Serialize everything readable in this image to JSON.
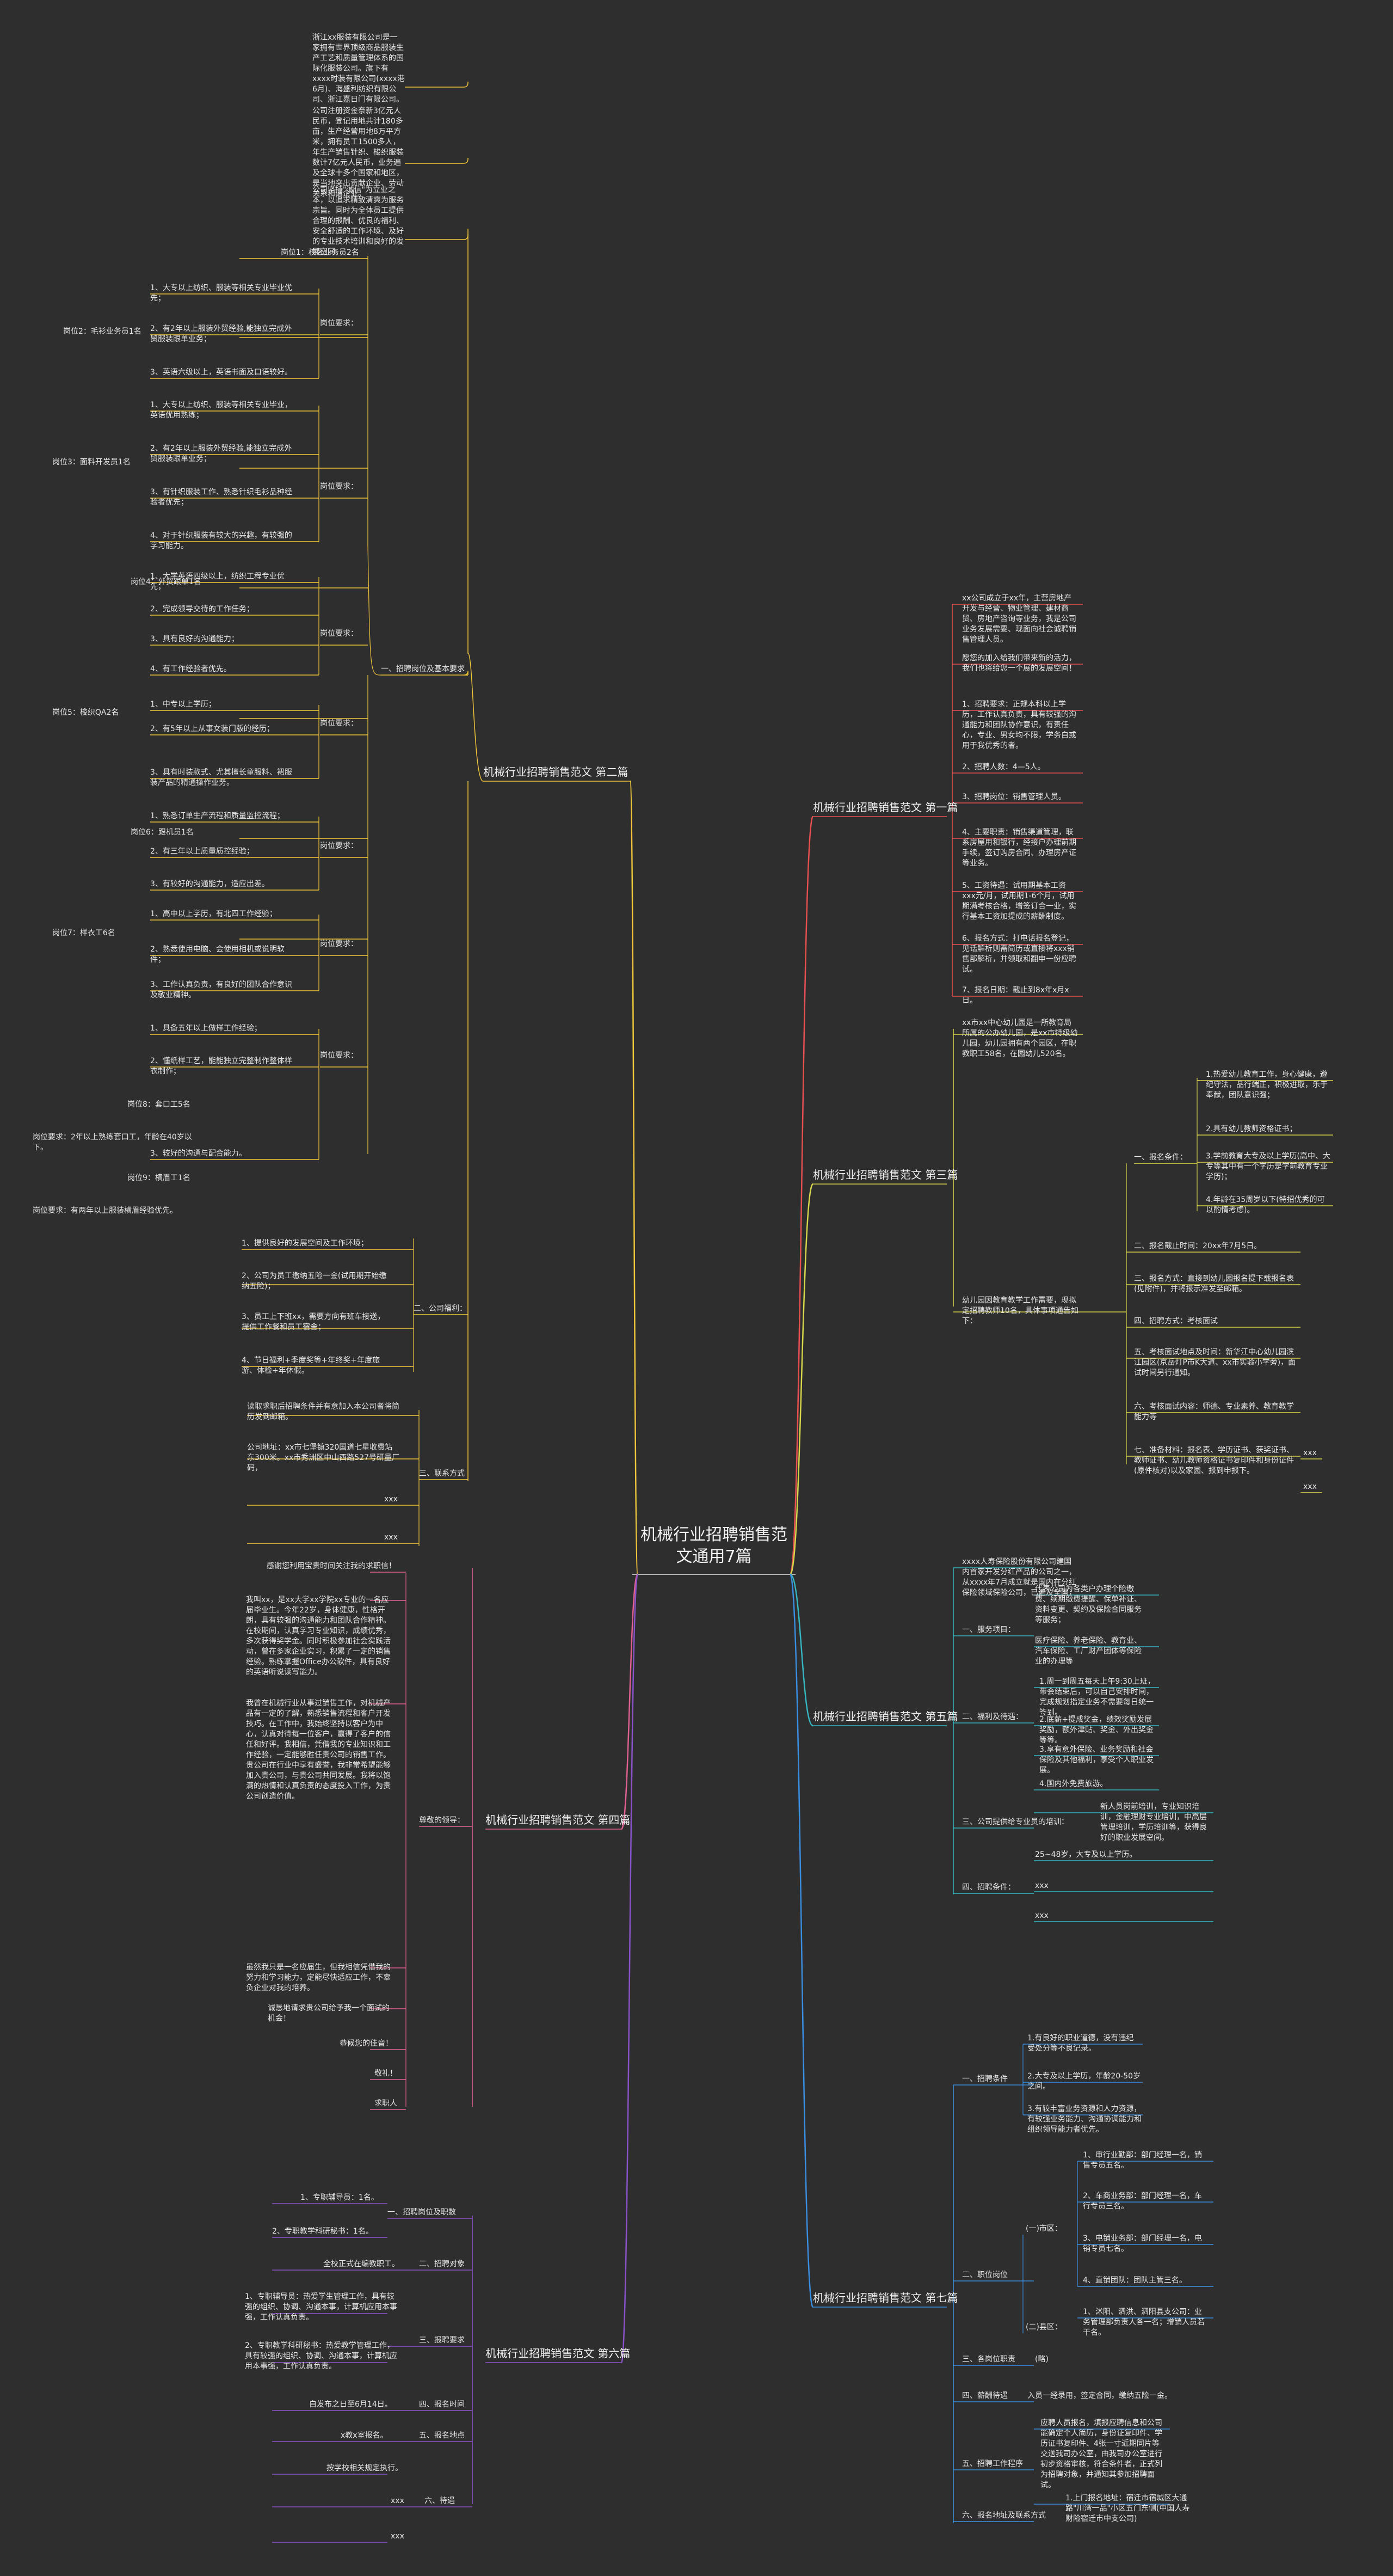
{
  "root": {
    "title": "机械行业招聘销售范文通用7篇"
  },
  "colors": {
    "b1": "#e85050",
    "b2": "#f0c63a",
    "b3": "#d8d64a",
    "b4": "#e06090",
    "b5": "#35b6c0",
    "b6": "#8a52c8",
    "b7": "#3a8ee0",
    "text": "#e6e6e6",
    "bg": "#2e2e2e"
  },
  "b2": {
    "title": "机械行业招聘销售范文 第二篇",
    "intro": [
      "浙江xx服装有限公司是一家拥有世界顶级商品服装生产工艺和质量管理体系的国际化服装公司。旗下有xxxx时装有限公司(xxxx港6月)、海盛利纺织有限公司、浙江嘉日门有限公司。",
      "公司注册资金奈新3亿元人民币，登记用地共计180多亩，生产经营用地8万平方米，拥有员工1500多人，年生产销售针织、梭织服装数计7亿元人民币，业务遍及全球十多个国家和地区，是当地突出贡献企业、劳动关系和谐企业。",
      "公司坚持\"诚信\"为立业之本，以追求精致清爽为服务宗旨。同时为全体员工提供合理的报酬、优良的福利、安全舒适的工作环境、及好的专业技术培训和良好的发展空间。"
    ],
    "section1": "一、招聘岗位及基本要求",
    "jobs": [
      {
        "title": "岗位1：校区业务员2名",
        "label": "岗位要求：",
        "items": [
          "1、大专以上纺织、服装等相关专业毕业优先；",
          "2、有2年以上服装外贸经验,能独立完成外贸服装跟单业务；",
          "3、英语六级以上，英语书面及口语较好。"
        ]
      },
      {
        "title": "岗位2：毛衫业务员1名",
        "label": "岗位要求：",
        "items": [
          "1、大专以上纺织、服装等相关专业毕业，英语优用熟练；",
          "2、有2年以上服装外贸经验,能独立完成外贸服装跟单业务；",
          "3、有针织服装工作、熟悉针织毛衫品种经验者优先；",
          "4、对于针织服装有较大的兴趣，有较强的学习能力。"
        ]
      },
      {
        "title": "岗位3：面料开发员1名",
        "label": "岗位要求：",
        "items": [
          "1、大学英语四级以上，纺织工程专业优先；",
          "2、完成领导交待的工作任务；",
          "3、具有良好的沟通能力；",
          "4、有工作经验者优先。"
        ]
      },
      {
        "title": "岗位4：外贸跟单1名",
        "label": "岗位要求：",
        "items": [
          "1、中专以上学历；",
          "2、有5年以上从事女装门版的经历；",
          "3、具有时装款式、尤其擅长童服料、裙服装产品的精通操作业务。"
        ]
      },
      {
        "title": "岗位5：梭织QA2名",
        "label": "岗位要求：",
        "items": [
          "1、熟悉订单生产流程和质量监控流程；",
          "2、有三年以上质量质控经验；",
          "3、有较好的沟通能力，适应出差。"
        ]
      },
      {
        "title": "岗位6：跟机员1名",
        "label": "岗位要求：",
        "items": [
          "1、高中以上学历，有北四工作经验；",
          "2、熟悉使用电脑、会使用相机或说明软件；",
          "3、工作认真负责，有良好的团队合作意识及敬业精神。"
        ]
      },
      {
        "title": "岗位7：样衣工6名",
        "label": "岗位要求：",
        "items": [
          "1、具备五年以上做样工作经验；",
          "2、懂纸样工艺，能能独立完整制作整体样衣制作；",
          "3、较好的沟通与配合能力。"
        ]
      }
    ],
    "extra": [
      "岗位8：套口工5名",
      "岗位要求：2年以上熟练套口工，年龄在40岁以下。",
      "岗位9：横眉工1名",
      "岗位要求：有两年以上服装横眉经验优先。"
    ],
    "section2": "二、公司福利：",
    "welfare": [
      "1、提供良好的发展空间及工作环境；",
      "2、公司为员工缴纳五险一金(试用期开始缴纳五险)；",
      "3、员工上下班xx，需要方向有班车接送，提供工作餐和员工宿舍；",
      "4、节日福利+季度奖等+年终奖+年度旅游、体检+年休假。"
    ],
    "section3": "三、联系方式",
    "contact": [
      "读取求职后招聘条件并有意加入本公司者将简历发到邮箱。",
      "公司地址：xx市七堡镇320国道七星收费站东300米。xx市秀洲区中山西路527号研量厂码，",
      "xxx",
      "xxx"
    ]
  },
  "b1": {
    "title": "机械行业招聘销售范文 第一篇",
    "items": [
      "xx公司成立于xx年，主营房地产开发与经营、物业管理、建材商贸、房地产咨询等业务，我是公司业务发展需要、现面向社会诚聘销售管理人员。",
      "愿您的加入给我们带来新的活力，我们也将给您一个展的发展空间！",
      "1、招聘要求：正规本科以上学历，工作认真负责，具有较强的沟通能力和团队协作意识，有责任心，专业、男女均不限，学务自或用于我优秀的者。",
      "2、招聘人数：4—5人。",
      "3、招聘岗位：销售管理人员。",
      "4、主要职责：销售渠道管理，联系房屋用和银行，经接户办理前期手续，签订购房合同、办理房产证等业务。",
      "5、工资待遇：试用期基本工资xxx元/月，试用期1-6个月，试用期满考核合格，增签订合一业，实行基本工资加提成的薪酬制度。",
      "6、报名方式：打电话报名登记，见话解析则需简历或直接将xxx销售部解析，并领取和翻申一份应聘试。",
      "7、报名日期：截止到8x年x月x日。"
    ]
  },
  "b3": {
    "title": "机械行业招聘销售范文 第三篇",
    "intro": [
      "xx市xx中心幼儿园是一所教育局所属的公办幼儿园，是xx市特级幼儿园，幼儿园拥有两个园区，在职教职工58名，在园幼儿520名。",
      "幼儿园因教育教学工作需要，现拟定招聘教师10名，具体事项通告如下："
    ],
    "s1": "一、报名条件：",
    "s1items": [
      "1.热爱幼儿教育工作，身心健康，遵纪守法，品行端正，积极进取，乐于奉献，团队意识强；",
      "2.具有幼儿教师资格证书；",
      "3.学前教育大专及以上学历(高中、大专等其中有一个学历是学前教育专业学历)；",
      "4.年龄在35周岁以下(特招优秀的可以酌情考虑)。"
    ],
    "rest": [
      "二、报名截止时间：20xx年7月5日。",
      "三、报名方式：直接到幼儿园报名提下载报名表(见附件)，并将报示准发至邮箱。",
      "四、招聘方式：考核面试",
      "五、考核面试地点及时间：新华江中心幼儿园滨江园区(京岳灯P市K大道、xx市实验小学旁)，面试时间另行通知。",
      "六、考核面试内容：师德、专业素养、教育教学能力等",
      "七、准备材料：报名表、学历证书、获奖证书、教师证书、幼儿教师资格证书复印件和身份证件(原件核对)以及家园、报到申报下。"
    ],
    "xxx": [
      "xxx",
      "xxx"
    ]
  },
  "b5": {
    "title": "机械行业招聘销售范文 第五篇",
    "intro": "xxxx人寿保险股份有限公司建国内首家开发分红产品的公司之一，从xxxx年7月成立就是国内在分红保险领域保险公司，已遍及全国，为中国西部地区提供优质保险服务。全公司之秀，我已建立的相关业务客户服务中心，竭诚为广大客户提供优质服务。我公司以人为本，坚持以人为本，对人才的重视和培养。",
    "s1": "一、服务项目：",
    "s1items": [
      "代表公司为各类户办理个险缴费、续期缴费提醒、保单补证、资料变更、契约及保险合同服务等服务；",
      "医疗保险、养老保险、教育业、汽车保险、工厂财产团体等保险业的办理等"
    ],
    "s2": "二、福利及待遇：",
    "s2items": [
      "1.周一到周五每天上午9:30上班，带会结束后，可以自己安排时间，完成规划指定业务不需要每日统一签到。",
      "2.底薪+提成奖金，绩效奖励发展奖励，额外津贴、奖金、外出奖金等等。",
      "3.享有意外保险、业务奖励和社会保险及其他福利，享受个人职业发展。",
      "4.国内外免费旅游。"
    ],
    "s3": "三、公司提供给专业员的培训：",
    "s3items": [
      "新人员岗前培训，专业知识培训，金融理财专业培训，中高层管理培训，学历培训等，获得良好的职业发展空间。"
    ],
    "s4": "四、招聘条件：",
    "s4items": [
      "25~48岁，大专及以上学历。",
      "xxx",
      "xxx"
    ]
  },
  "b4": {
    "title": "机械行业招聘销售范文 第四篇",
    "opening": "感谢您利用宝贵时间关注我的求职信！",
    "label": "尊敬的领导：",
    "paras": [
      "我叫xx，是xx大学xx学院xx专业的一名应届毕业生。今年22岁，身体健康，性格开朗，具有较强的沟通能力和团队合作精神。在校期间，认真学习专业知识，成绩优秀，多次获得奖学金。同时积极参加社会实践活动，曾在多家企业实习，积累了一定的销售经验。熟练掌握Office办公软件，具有良好的英语听说读写能力。",
      "我曾在机械行业从事过销售工作，对机械产品有一定的了解，熟悉销售流程和客户开发技巧。在工作中，我始终坚持以客户为中心，认真对待每一位客户，赢得了客户的信任和好评。我相信，凭借我的专业知识和工作经验，一定能够胜任贵公司的销售工作。贵公司在行业中享有盛誉，我非常希望能够加入贵公司，与贵公司共同发展。我将以饱满的热情和认真负责的态度投入工作，为贵公司创造价值。",
      "虽然我只是一名应届生，但我相信凭借我的努力和学习能力，定能尽快适应工作，不辜负企业对我的培养。",
      "诚恳地请求贵公司给予我一个面试的机会！",
      "恭候您的佳音！",
      "敬礼！",
      "求职人"
    ]
  },
  "b7": {
    "title": "机械行业招聘销售范文 第七篇",
    "s1": "一、招聘条件",
    "s1items": [
      "1.有良好的职业道德，没有违纪受处分等不良记录。",
      "2.大专及以上学历，年龄20-50岁之间。",
      "3.有较丰富业务资源和人力资源，有较强业务能力、沟通协调能力和组织领导能力者优先。"
    ],
    "s2": "二、职位岗位",
    "g1": "(一)市区：",
    "g1items": [
      "1、审行业勤部：部门经理一名，销售专员五名。",
      "2、车商业务部：部门经理一名，车行专员三名。",
      "3、电销业务部：部门经理一名，电销专员七名。",
      "4、直销团队：团队主管三名。"
    ],
    "g2": "(二)县区：",
    "g2items": [
      "1、沭阳、泗洪、泗阳县支公司：业务管理部负责人各一名；增销人员若干名。"
    ],
    "s3": "三、各岗位职责",
    "s3v": "(略)",
    "s4": "四、薪酬待遇",
    "s4v": "入员一经录用，签定合同，缴纳五险一金。",
    "s5": "五、招聘工作程序",
    "s5v": "应聘人员报名，填报应聘信息和公司能确定个人简历，身份证复印件、学历证书复印件、4张一寸近期同片等交送我司办公室，由我司办公室进行初步资格审核，符合条件者，正式列为招聘对象，并通知其参加招聘面试。",
    "s6": "六、报名地址及联系方式",
    "s6v": "1.上门报名地址：宿迁市宿城区大通路\"川湾一品\"小区五门东侧(中国人寿财险宿迁市中支公司)"
  },
  "b6": {
    "title": "机械行业招聘销售范文 第六篇",
    "s1": "一、招聘岗位及职数",
    "s1items": [
      "1、专职辅导员：1名。",
      "2、专职教学科研秘书：1名。"
    ],
    "s2": "二、招聘对象",
    "s2v": "全校正式在编教职工。",
    "s3": "三、报聘要求",
    "s3items": [
      "1、专职辅导员：热爱学生管理工作，具有较强的组织、协调、沟通本事，计算机应用本事强，工作认真负责。",
      "2、专职教学科研秘书：热爱教学管理工作，具有较强的组织、协调、沟通本事，计算机应用本事强，工作认真负责。"
    ],
    "s4": "四、报名时间",
    "s4v": "自发布之日至6月14日。",
    "s5": "五、报名地点",
    "s5v": "x教x室报名。",
    "s6v": "按学校相关规定执行。",
    "s6": "六、待遇",
    "xxx": [
      "xxx",
      "xxx"
    ]
  }
}
